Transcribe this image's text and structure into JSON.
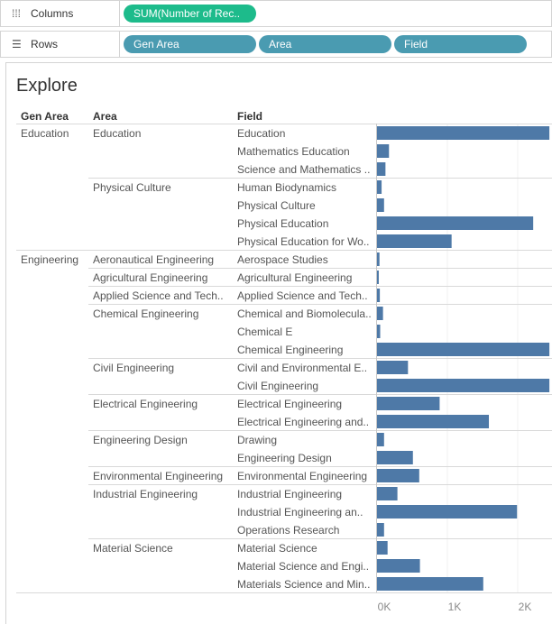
{
  "shelves": {
    "columns": {
      "label": "Columns",
      "icon": "columns-icon",
      "pills": [
        "SUM(Number of Rec.."
      ]
    },
    "rows": {
      "label": "Rows",
      "icon": "rows-icon",
      "pills": [
        "Gen Area",
        "Area",
        "Field"
      ]
    }
  },
  "sheet_title": "Explore",
  "headers": {
    "gen_area": "Gen Area",
    "area": "Area",
    "field": "Field"
  },
  "colors": {
    "bar": "#4e79a7",
    "pill_measure": "#1dbb8b",
    "pill_dimension": "#4a9bb1"
  },
  "chart_data": {
    "type": "bar",
    "orientation": "horizontal",
    "x_ticks": [
      "0K",
      "1K",
      "2K"
    ],
    "x_range": [
      0,
      2450
    ],
    "groups": [
      {
        "gen_area": "Education",
        "areas": [
          {
            "area": "Education",
            "fields": [
              {
                "field": "Education",
                "value": 2450
              },
              {
                "field": "Mathematics Education",
                "value": 170
              },
              {
                "field": "Science and Mathematics ..",
                "value": 120
              }
            ]
          },
          {
            "area": "Physical Culture",
            "fields": [
              {
                "field": "Human Biodynamics",
                "value": 65
              },
              {
                "field": "Physical Culture",
                "value": 100
              },
              {
                "field": "Physical Education",
                "value": 2220
              },
              {
                "field": "Physical Education for Wo..",
                "value": 1060
              }
            ]
          }
        ]
      },
      {
        "gen_area": "Engineering",
        "areas": [
          {
            "area": "Aeronautical Engineering",
            "fields": [
              {
                "field": "Aerospace Studies",
                "value": 35
              }
            ]
          },
          {
            "area": "Agricultural Engineering",
            "fields": [
              {
                "field": "Agricultural Engineering",
                "value": 25
              }
            ]
          },
          {
            "area": "Applied Science and Tech..",
            "fields": [
              {
                "field": "Applied Science and Tech..",
                "value": 40
              }
            ]
          },
          {
            "area": "Chemical Engineering",
            "fields": [
              {
                "field": "Chemical and Biomolecula..",
                "value": 85
              },
              {
                "field": "Chemical E",
                "value": 45
              },
              {
                "field": "Chemical Engineering",
                "value": 2450
              }
            ]
          },
          {
            "area": "Civil Engineering",
            "fields": [
              {
                "field": "Civil and Environmental E..",
                "value": 440
              },
              {
                "field": "Civil Engineering",
                "value": 2450
              }
            ]
          },
          {
            "area": "Electrical Engineering",
            "fields": [
              {
                "field": "Electrical Engineering",
                "value": 890
              },
              {
                "field": "Electrical Engineering and..",
                "value": 1590
              }
            ]
          },
          {
            "area": "Engineering Design",
            "fields": [
              {
                "field": "Drawing",
                "value": 100
              },
              {
                "field": "Engineering Design",
                "value": 510
              }
            ]
          },
          {
            "area": "Environmental Engineering",
            "fields": [
              {
                "field": "Environmental Engineering",
                "value": 600
              }
            ]
          },
          {
            "area": "Industrial Engineering",
            "fields": [
              {
                "field": "Industrial Engineering",
                "value": 290
              },
              {
                "field": "Industrial Engineering an..",
                "value": 1990
              },
              {
                "field": "Operations Research",
                "value": 100
              }
            ]
          },
          {
            "area": "Material Science",
            "fields": [
              {
                "field": "Material Science",
                "value": 150
              },
              {
                "field": "Material Science and Engi..",
                "value": 610
              },
              {
                "field": "Materials Science and Min..",
                "value": 1510
              }
            ]
          }
        ]
      }
    ]
  }
}
